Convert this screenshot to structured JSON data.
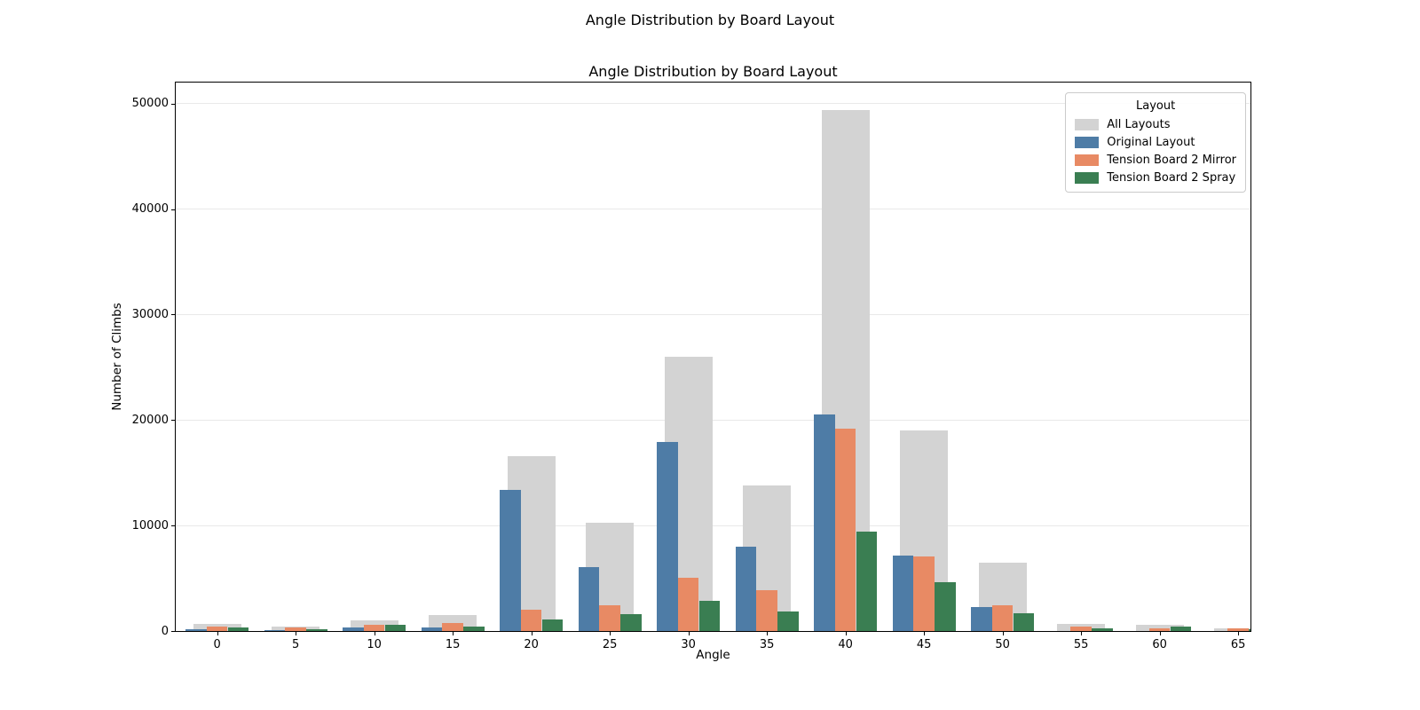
{
  "page": {
    "suptitle": "Angle Distribution by Board Layout",
    "background": "#ffffff"
  },
  "chart_data": {
    "type": "bar",
    "title": "Angle Distribution by Board Layout",
    "xlabel": "Angle",
    "ylabel": "Number of Climbs",
    "categories": [
      0,
      5,
      10,
      15,
      20,
      25,
      30,
      35,
      40,
      45,
      50,
      55,
      60,
      65
    ],
    "series": [
      {
        "name": "All Layouts",
        "role": "background-total",
        "color": "#d3d3d3",
        "values": [
          700,
          450,
          1050,
          1550,
          16600,
          10300,
          26000,
          13800,
          49400,
          19000,
          6500,
          700,
          620,
          250
        ]
      },
      {
        "name": "Original Layout",
        "role": "grouped",
        "color": "#4e7ca6",
        "values": [
          200,
          100,
          300,
          330,
          13350,
          6100,
          17900,
          8000,
          20500,
          7150,
          2300,
          0,
          0,
          0
        ]
      },
      {
        "name": "Tension Board 2 Mirror",
        "role": "grouped",
        "color": "#e88a64",
        "values": [
          400,
          300,
          550,
          780,
          2050,
          2400,
          5050,
          3900,
          19200,
          7100,
          2400,
          400,
          280,
          230
        ]
      },
      {
        "name": "Tension Board 2 Spray",
        "role": "grouped",
        "color": "#3a7e52",
        "values": [
          300,
          180,
          580,
          400,
          1100,
          1600,
          2900,
          1850,
          9450,
          4600,
          1650,
          280,
          400,
          170
        ]
      }
    ],
    "ylim": [
      0,
      52000
    ],
    "yticks": [
      0,
      10000,
      20000,
      30000,
      40000,
      50000
    ],
    "grid": "horizontal",
    "legend": {
      "title": "Layout",
      "position": "upper right"
    },
    "axis_color": "#000000",
    "gridline_color": "#e9e9e9"
  }
}
